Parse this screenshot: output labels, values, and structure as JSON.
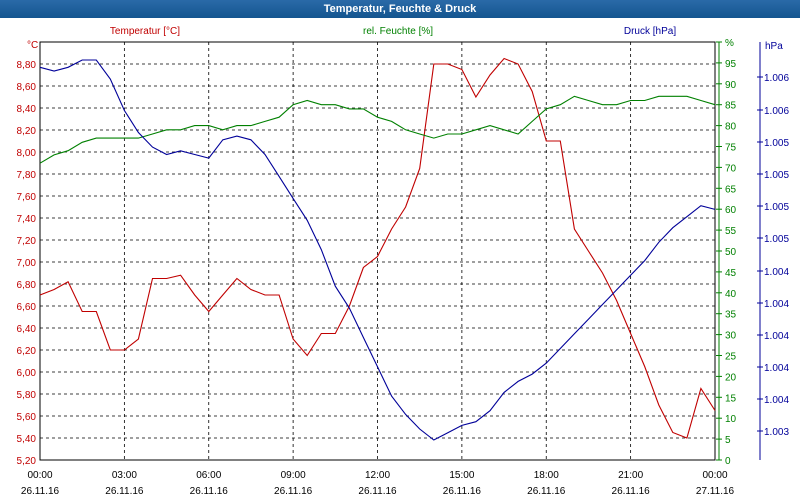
{
  "window": {
    "title": "Temperatur, Feuchte & Druck"
  },
  "colors": {
    "temperature": "#c00000",
    "humidity": "#008000",
    "pressure": "#000099",
    "title_bg": "#1c5f9c"
  },
  "chart_data": {
    "type": "line",
    "title": "Temperatur, Feuchte & Druck",
    "x_tick_labels": [
      [
        "00:00",
        "26.11.16"
      ],
      [
        "03:00",
        "26.11.16"
      ],
      [
        "06:00",
        "26.11.16"
      ],
      [
        "09:00",
        "26.11.16"
      ],
      [
        "12:00",
        "26.11.16"
      ],
      [
        "15:00",
        "26.11.16"
      ],
      [
        "18:00",
        "26.11.16"
      ],
      [
        "21:00",
        "26.11.16"
      ],
      [
        "00:00",
        "27.11.16"
      ]
    ],
    "axes": {
      "left": {
        "label": "°C",
        "ylim": [
          5.2,
          9.0
        ],
        "ticks": [
          "5,20",
          "5,40",
          "5,60",
          "5,80",
          "6,00",
          "6,20",
          "6,40",
          "6,60",
          "6,80",
          "7,00",
          "7,20",
          "7,40",
          "7,60",
          "7,80",
          "8,00",
          "8,20",
          "8,40",
          "8,60",
          "8,80"
        ]
      },
      "right1": {
        "label": "%",
        "ylim": [
          0,
          100
        ],
        "ticks": [
          "0",
          "5",
          "10",
          "15",
          "20",
          "25",
          "30",
          "35",
          "40",
          "45",
          "50",
          "55",
          "60",
          "65",
          "70",
          "75",
          "80",
          "85",
          "90",
          "95",
          "%"
        ]
      },
      "right2": {
        "label": "hPa",
        "ticks": [
          "1.003",
          "1.004",
          "1.004",
          "1.004",
          "1.004",
          "1.004",
          "1.005",
          "1.005",
          "1.005",
          "1.005",
          "1.006",
          "1.006"
        ]
      }
    },
    "grid": true,
    "legend": [
      "Temperatur [°C]",
      "rel. Feuchte [%]",
      "Druck [hPa]"
    ],
    "series": [
      {
        "name": "Temperatur [°C]",
        "axis": "left",
        "x": [
          0,
          0.5,
          1,
          1.5,
          2,
          2.5,
          3,
          3.5,
          4,
          4.5,
          5,
          5.5,
          6,
          6.5,
          7,
          7.5,
          8,
          8.5,
          9,
          9.5,
          10,
          10.5,
          11,
          11.5,
          12,
          12.5,
          13,
          13.5,
          14,
          14.5,
          15,
          15.5,
          16,
          16.5,
          17,
          17.5,
          18,
          18.5,
          19,
          19.5,
          20,
          20.5,
          21,
          21.5,
          22,
          22.5,
          23,
          23.5,
          24
        ],
        "y": [
          6.7,
          6.75,
          6.82,
          6.55,
          6.55,
          6.2,
          6.2,
          6.3,
          6.85,
          6.85,
          6.88,
          6.7,
          6.55,
          6.7,
          6.85,
          6.75,
          6.7,
          6.7,
          6.3,
          6.15,
          6.35,
          6.35,
          6.6,
          6.95,
          7.05,
          7.3,
          7.5,
          7.85,
          8.8,
          8.8,
          8.75,
          8.5,
          8.7,
          8.85,
          8.8,
          8.55,
          8.1,
          8.1,
          7.3,
          7.1,
          6.9,
          6.65,
          6.35,
          6.05,
          5.7,
          5.45,
          5.4,
          5.85,
          5.65
        ]
      },
      {
        "name": "rel. Feuchte [%]",
        "axis": "right1",
        "x": [
          0,
          0.5,
          1,
          1.5,
          2,
          2.5,
          3,
          3.5,
          4,
          4.5,
          5,
          5.5,
          6,
          6.5,
          7,
          7.5,
          8,
          8.5,
          9,
          9.5,
          10,
          10.5,
          11,
          11.5,
          12,
          12.5,
          13,
          13.5,
          14,
          14.5,
          15,
          15.5,
          16,
          16.5,
          17,
          17.5,
          18,
          18.5,
          19,
          19.5,
          20,
          20.5,
          21,
          21.5,
          22,
          22.5,
          23,
          23.5,
          24
        ],
        "y": [
          71,
          73,
          74,
          76,
          77,
          77,
          77,
          77,
          78,
          79,
          79,
          80,
          80,
          79,
          80,
          80,
          81,
          82,
          85,
          86,
          85,
          85,
          84,
          84,
          82,
          81,
          79,
          78,
          77,
          78,
          78,
          79,
          80,
          79,
          78,
          81,
          84,
          85,
          87,
          86,
          85,
          85,
          86,
          86,
          87,
          87,
          87,
          86,
          85
        ]
      },
      {
        "name": "Druck [hPa]",
        "axis": "right2",
        "x": [
          0,
          0.5,
          1,
          1.5,
          2,
          2.5,
          3,
          3.5,
          4,
          4.5,
          5,
          5.5,
          6,
          6.5,
          7,
          7.5,
          8,
          8.5,
          9,
          9.5,
          10,
          10.5,
          11,
          11.5,
          12,
          12.5,
          13,
          13.5,
          14,
          14.5,
          15,
          15.5,
          16,
          16.5,
          17,
          17.5,
          18,
          18.5,
          19,
          19.5,
          20,
          20.5,
          21,
          21.5,
          22,
          22.5,
          23,
          23.5,
          24
        ],
        "y": [
          1.00587,
          1.00582,
          1.00587,
          1.00597,
          1.00597,
          1.00571,
          1.00528,
          1.00498,
          1.00478,
          1.00468,
          1.00473,
          1.00468,
          1.00463,
          1.00488,
          1.00493,
          1.00488,
          1.00468,
          1.00438,
          1.00408,
          1.00378,
          1.00338,
          1.00288,
          1.00258,
          1.00218,
          1.00178,
          1.00138,
          1.00113,
          1.00093,
          1.00078,
          1.00088,
          1.00098,
          1.00103,
          1.00118,
          1.00143,
          1.00158,
          1.00168,
          1.00183,
          1.00203,
          1.00223,
          1.00243,
          1.00263,
          1.00283,
          1.00303,
          1.00323,
          1.00348,
          1.00368,
          1.00383,
          1.00398,
          1.00393
        ]
      }
    ]
  }
}
